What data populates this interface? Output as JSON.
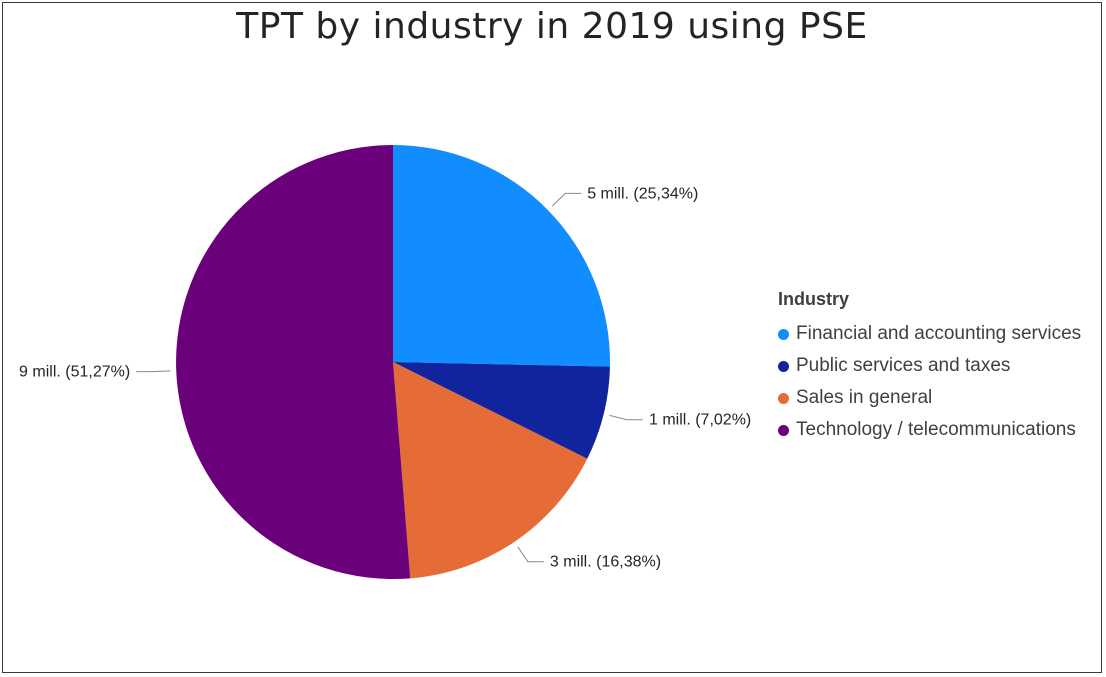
{
  "chart_data": {
    "type": "pie",
    "title": "TPT by industry in 2019 using PSE",
    "legend": {
      "title": "Industry",
      "placement": "right"
    },
    "slices": [
      {
        "category": "Financial and accounting services",
        "value_label": "5 mill.",
        "percent": 25.34,
        "label": "5 mill. (25,34%)",
        "color": "#118DFF"
      },
      {
        "category": "Public services and taxes",
        "value_label": "1 mill.",
        "percent": 7.02,
        "label": "1 mill. (7,02%)",
        "color": "#12239E"
      },
      {
        "category": "Sales in general",
        "value_label": "3 mill.",
        "percent": 16.38,
        "label": "3 mill. (16,38%)",
        "color": "#E66C37"
      },
      {
        "category": "Technology / telecommunications",
        "value_label": "9 mill.",
        "percent": 51.27,
        "label": "9 mill. (51,27%)",
        "color": "#6B007B"
      }
    ]
  }
}
